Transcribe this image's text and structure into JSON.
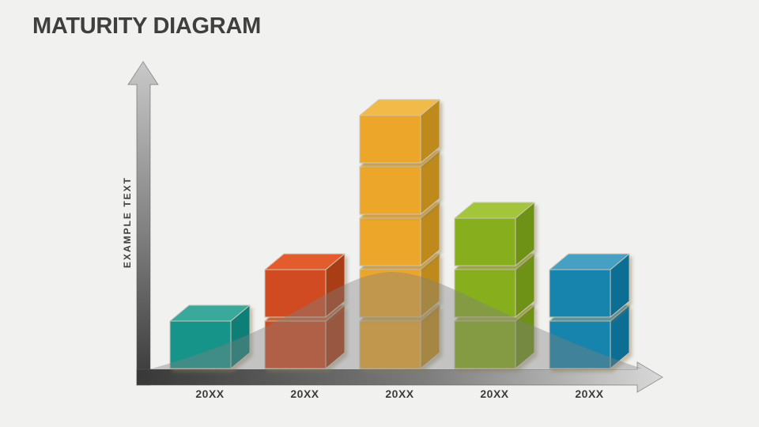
{
  "page": {
    "title": "MATURITY DIAGRAM",
    "background_color": "#f1f1f0",
    "title_color": "#3f3f3f"
  },
  "chart_data": {
    "type": "bar",
    "title": "MATURITY DIAGRAM",
    "ylabel": "EXAMPLE TEXT",
    "xlabel": "",
    "categories": [
      "20XX",
      "20XX",
      "20XX",
      "20XX",
      "20XX"
    ],
    "values": [
      1,
      2,
      5,
      3,
      2
    ],
    "value_unit": "stacked cubes",
    "legend": "none",
    "grid": "off",
    "stacks": [
      {
        "label": "20XX",
        "cubes": 1,
        "color_name": "teal",
        "front": "#13948A",
        "top": "#3AA89C",
        "side": "#0D7F76"
      },
      {
        "label": "20XX",
        "cubes": 2,
        "color_name": "orange",
        "front": "#D04B20",
        "top": "#E25C2D",
        "side": "#A93C14"
      },
      {
        "label": "20XX",
        "cubes": 5,
        "color_name": "amber",
        "front": "#ECA72B",
        "top": "#F2BA4A",
        "side": "#BE8A1D"
      },
      {
        "label": "20XX",
        "cubes": 3,
        "color_name": "green",
        "front": "#87AE1D",
        "top": "#A2C53A",
        "side": "#6E9213"
      },
      {
        "label": "20XX",
        "cubes": 2,
        "color_name": "blue",
        "front": "#1784AC",
        "top": "#44A0C4",
        "side": "#0F6E94"
      }
    ],
    "overlay_curve": {
      "shape": "bell-curve",
      "color": "#808080",
      "opacity": 0.4
    },
    "axes": {
      "style": "gradient-arrow",
      "dark_color": "#383838",
      "light_color": "#d5d5d5",
      "outline_color": "#5a5a5a"
    },
    "cube_edge_color": "#cfc6b8",
    "label_color": "#3c3c3c"
  }
}
